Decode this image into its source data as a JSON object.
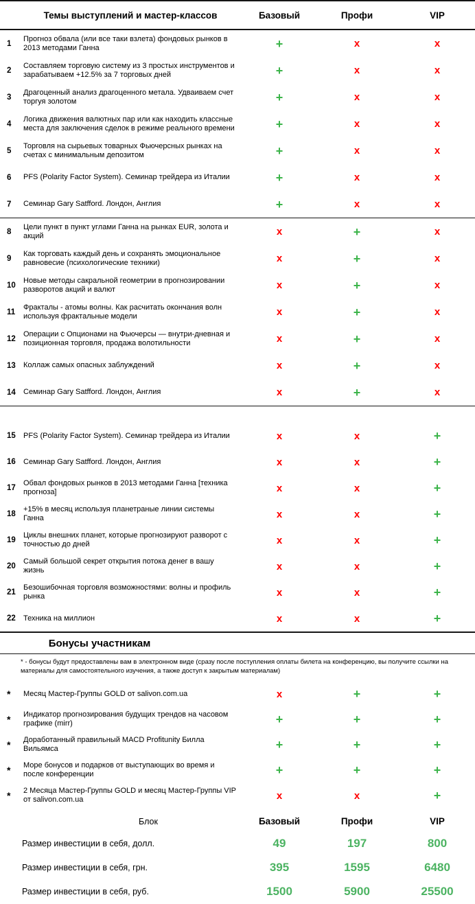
{
  "colors": {
    "plus_green": "#3cb44a",
    "x_red": "#ff0000",
    "price_green": "#4cb362",
    "line": "#151515"
  },
  "symbols": {
    "included": "+",
    "excluded": "x"
  },
  "table": {
    "header": {
      "topic_label": "Темы выступлений и мастер-классов",
      "columns": [
        "Базовый",
        "Профи",
        "VIP"
      ]
    },
    "sections": [
      {
        "rows": [
          {
            "num": "1",
            "topic": "Прогноз обвала (или все таки взлета) фондовых рынков в 2013 методами Ганна",
            "basic": "+",
            "pro": "x",
            "vip": "x"
          },
          {
            "num": "2",
            "topic": "Составляем торговую систему из 3 простых инструментов и зарабатываем +12.5% за 7 торговых дней",
            "basic": "+",
            "pro": "x",
            "vip": "x"
          },
          {
            "num": "3",
            "topic": "Драгоценный анализ драгоценного метала. Удваиваем счет торгуя золотом",
            "basic": "+",
            "pro": "x",
            "vip": "x"
          },
          {
            "num": "4",
            "topic": "Логика движения валютных пар или как находить классные места для заключения сделок в режиме реального времени",
            "basic": "+",
            "pro": "x",
            "vip": "x"
          },
          {
            "num": "5",
            "topic": "Торговля на сырьевых товарных Фьючерсных рынках на счетах с минимальным депозитом",
            "basic": "+",
            "pro": "x",
            "vip": "x"
          },
          {
            "num": "6",
            "topic": "PFS (Polarity Factor System). Семинар трейдера из Италии",
            "basic": "+",
            "pro": "x",
            "vip": "x"
          },
          {
            "num": "7",
            "topic": "Семинар Gary Satfford. Лондон, Англия",
            "basic": "+",
            "pro": "x",
            "vip": "x"
          }
        ]
      },
      {
        "rows": [
          {
            "num": "8",
            "topic": "Цели пункт в пункт углами Ганна на рынках EUR, золота и акций",
            "basic": "x",
            "pro": "+",
            "vip": "x"
          },
          {
            "num": "9",
            "topic": "Как торговать каждый день и сохранять эмоциональное равновесие (психологические техники)",
            "basic": "x",
            "pro": "+",
            "vip": "x"
          },
          {
            "num": "10",
            "topic": "Новые методы сакральной геометрии в прогнозировании разворотов акций и валют",
            "basic": "x",
            "pro": "+",
            "vip": "x"
          },
          {
            "num": "11",
            "topic": "Фракталы - атомы волны. Как расчитать окончания волн используя фрактальные модели",
            "basic": "x",
            "pro": "+",
            "vip": "x"
          },
          {
            "num": "12",
            "topic": "Операции с Опционами на Фьючерсы — внутри-дневная и позиционная торговля, продажа волотильности",
            "basic": "x",
            "pro": "+",
            "vip": "x"
          },
          {
            "num": "13",
            "topic": "Коллаж самых опасных заблуждений",
            "basic": "x",
            "pro": "+",
            "vip": "x"
          },
          {
            "num": "14",
            "topic": "Семинар Gary Satfford. Лондон, Англия",
            "basic": "x",
            "pro": "+",
            "vip": "x"
          }
        ]
      },
      {
        "rows": [
          {
            "num": "15",
            "topic": "PFS (Polarity Factor System). Семинар трейдера из Италии",
            "basic": "x",
            "pro": "x",
            "vip": "+"
          },
          {
            "num": "16",
            "topic": "Семинар Gary Satfford. Лондон, Англия",
            "basic": "x",
            "pro": "x",
            "vip": "+"
          },
          {
            "num": "17",
            "topic": "Обвал фондовых рынков в 2013 методами Ганна [техника прогноза]",
            "basic": "x",
            "pro": "x",
            "vip": "+"
          },
          {
            "num": "18",
            "topic": " +15% в месяц используя планетраные линии системы Ганна",
            "basic": "x",
            "pro": "x",
            "vip": "+"
          },
          {
            "num": "19",
            "topic": "Циклы внешних планет, которые прогнозируют разворот с точностью до дней",
            "basic": "x",
            "pro": "x",
            "vip": "+"
          },
          {
            "num": "20",
            "topic": "Самый большой секрет открытия потока денег в вашу жизнь",
            "basic": "x",
            "pro": "x",
            "vip": "+"
          },
          {
            "num": "21",
            "topic": "Безошибочная торговля возможностями: волны и профиль рынка",
            "basic": "x",
            "pro": "x",
            "vip": "+"
          },
          {
            "num": "22",
            "topic": "Техника на миллион",
            "basic": "x",
            "pro": "x",
            "vip": "+"
          }
        ]
      }
    ]
  },
  "bonus": {
    "title": "Бонусы участникам",
    "footnote": "* - бонусы будут предоставлены вам в электронном виде (сразу после поступления оплаты билета на конференцию, вы получите ссылки на материалы для самостоятельного изучения, а также доступ к закрытым материалам)",
    "marker": "*",
    "rows": [
      {
        "text": "Месяц Мастер-Группы GOLD от salivon.com.ua",
        "basic": "x",
        "pro": "+",
        "vip": "+"
      },
      {
        "text": "Индикатор прогнозирования будущих трендов на часовом графике (mirr)",
        "basic": "+",
        "pro": "+",
        "vip": "+"
      },
      {
        "text": "Доработанный правильный MACD Profitunity Билла Вильямса",
        "basic": "+",
        "pro": "+",
        "vip": "+"
      },
      {
        "text": "Море бонусов и подарков от выступающих во время и после конференции",
        "basic": "+",
        "pro": "+",
        "vip": "+"
      },
      {
        "text": "2 Месяца Мастер-Группы GOLD и месяц Мастер-Группы VIP от salivon.com.ua",
        "basic": "x",
        "pro": "x",
        "vip": "+"
      }
    ]
  },
  "pricing": {
    "header": {
      "label": "Блок",
      "columns": [
        "Базовый",
        "Профи",
        "VIP"
      ]
    },
    "rows": [
      {
        "label": "Размер инвестиции в себя, долл.",
        "values": [
          "49",
          "197",
          "800"
        ]
      },
      {
        "label": "Размер инвестиции в себя, грн.",
        "values": [
          "395",
          "1595",
          "6480"
        ]
      },
      {
        "label": "Размер инвестиции в себя, руб.",
        "values": [
          "1500",
          "5900",
          "25500"
        ]
      }
    ]
  }
}
